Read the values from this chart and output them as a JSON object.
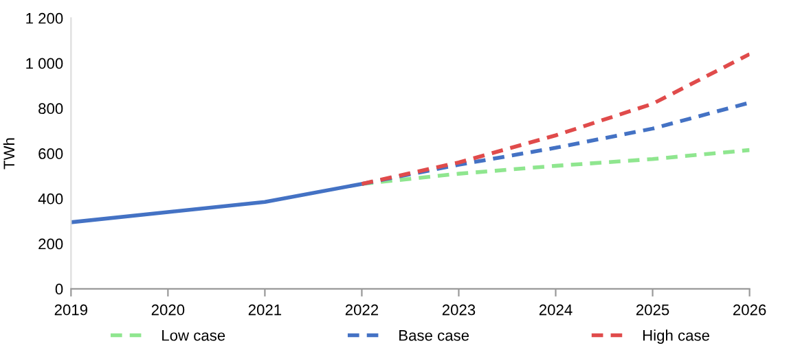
{
  "chart_data": {
    "type": "line",
    "ylabel": "TWh",
    "xlim": [
      2019,
      2026
    ],
    "xticks": [
      2019,
      2020,
      2021,
      2022,
      2023,
      2024,
      2025,
      2026
    ],
    "ylim": [
      0,
      1200
    ],
    "yticks": [
      0,
      200,
      400,
      600,
      800,
      {
        "value": 1000,
        "label": "1 000"
      },
      {
        "value": 1200,
        "label": "1 200"
      }
    ],
    "grid": false,
    "legend": "bottom",
    "marker": "none",
    "series": [
      {
        "color": "#4472c4",
        "line_style": "solid",
        "x": [
          2019,
          2020,
          2021,
          2022
        ],
        "values": [
          295,
          340,
          385,
          465
        ]
      },
      {
        "name": "Low case",
        "color": "#8fe68f",
        "line_style": "dashed",
        "x": [
          2022,
          2023,
          2024,
          2025,
          2026
        ],
        "values": [
          465,
          510,
          545,
          575,
          615
        ]
      },
      {
        "name": "Base case",
        "color": "#4472c4",
        "line_style": "dashed",
        "x": [
          2022,
          2023,
          2024,
          2025,
          2026
        ],
        "values": [
          465,
          550,
          625,
          710,
          825
        ]
      },
      {
        "name": "High case",
        "color": "#e04b4b",
        "line_style": "dashed",
        "x": [
          2022,
          2023,
          2024,
          2025,
          2026
        ],
        "values": [
          465,
          560,
          680,
          820,
          1040
        ]
      }
    ]
  }
}
